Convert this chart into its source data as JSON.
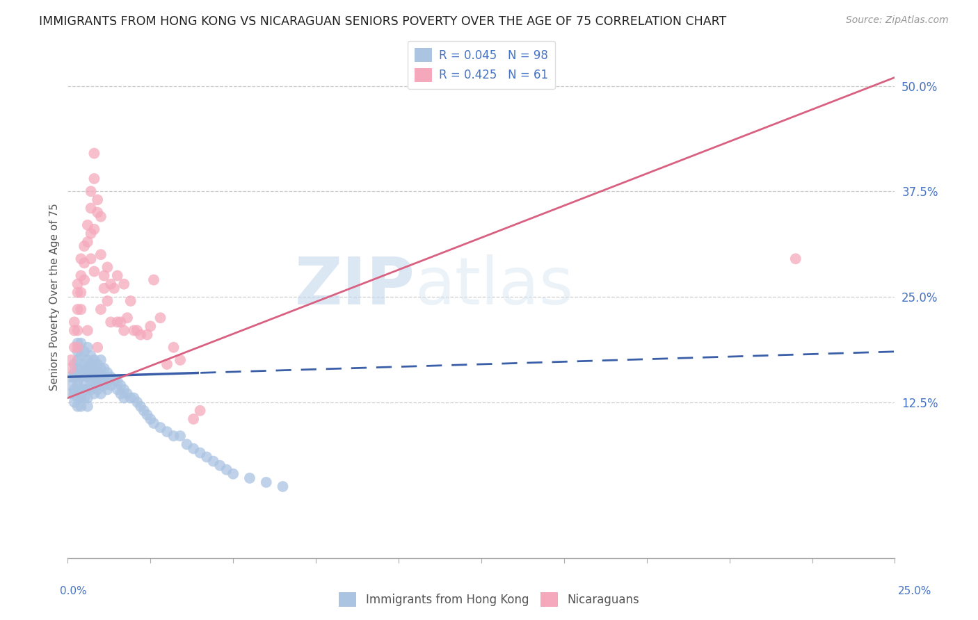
{
  "title": "IMMIGRANTS FROM HONG KONG VS NICARAGUAN SENIORS POVERTY OVER THE AGE OF 75 CORRELATION CHART",
  "source": "Source: ZipAtlas.com",
  "ylabel": "Seniors Poverty Over the Age of 75",
  "ytick_vals": [
    0.125,
    0.25,
    0.375,
    0.5
  ],
  "ytick_labels": [
    "12.5%",
    "25.0%",
    "37.5%",
    "50.0%"
  ],
  "xlim": [
    0.0,
    0.25
  ],
  "ylim": [
    -0.06,
    0.56
  ],
  "hk_R": 0.045,
  "hk_N": 98,
  "nic_R": 0.425,
  "nic_N": 61,
  "hk_color": "#aac4e2",
  "nic_color": "#f5a8bc",
  "hk_line_color": "#3a5fa8",
  "nic_line_color": "#d96080",
  "legend_label_hk": "Immigrants from Hong Kong",
  "legend_label_nic": "Nicaraguans",
  "watermark_zip": "ZIP",
  "watermark_atlas": "atlas",
  "background_color": "#ffffff",
  "hk_scatter_x": [
    0.001,
    0.001,
    0.001,
    0.002,
    0.002,
    0.002,
    0.002,
    0.002,
    0.002,
    0.003,
    0.003,
    0.003,
    0.003,
    0.003,
    0.003,
    0.003,
    0.003,
    0.003,
    0.003,
    0.003,
    0.004,
    0.004,
    0.004,
    0.004,
    0.004,
    0.004,
    0.004,
    0.005,
    0.005,
    0.005,
    0.005,
    0.005,
    0.005,
    0.006,
    0.006,
    0.006,
    0.006,
    0.006,
    0.006,
    0.006,
    0.007,
    0.007,
    0.007,
    0.007,
    0.007,
    0.008,
    0.008,
    0.008,
    0.008,
    0.008,
    0.009,
    0.009,
    0.009,
    0.009,
    0.01,
    0.01,
    0.01,
    0.01,
    0.01,
    0.011,
    0.011,
    0.011,
    0.012,
    0.012,
    0.012,
    0.013,
    0.013,
    0.014,
    0.015,
    0.015,
    0.016,
    0.016,
    0.017,
    0.017,
    0.018,
    0.019,
    0.02,
    0.021,
    0.022,
    0.023,
    0.024,
    0.025,
    0.026,
    0.028,
    0.03,
    0.032,
    0.034,
    0.036,
    0.038,
    0.04,
    0.042,
    0.044,
    0.046,
    0.048,
    0.05,
    0.055,
    0.06,
    0.065
  ],
  "hk_scatter_y": [
    0.155,
    0.145,
    0.135,
    0.17,
    0.16,
    0.155,
    0.14,
    0.135,
    0.125,
    0.195,
    0.185,
    0.175,
    0.165,
    0.155,
    0.15,
    0.145,
    0.14,
    0.135,
    0.13,
    0.12,
    0.195,
    0.18,
    0.165,
    0.155,
    0.14,
    0.13,
    0.12,
    0.185,
    0.17,
    0.16,
    0.15,
    0.14,
    0.13,
    0.19,
    0.175,
    0.165,
    0.155,
    0.14,
    0.13,
    0.12,
    0.18,
    0.17,
    0.16,
    0.15,
    0.14,
    0.175,
    0.165,
    0.155,
    0.145,
    0.135,
    0.17,
    0.16,
    0.15,
    0.14,
    0.175,
    0.165,
    0.155,
    0.145,
    0.135,
    0.165,
    0.155,
    0.145,
    0.16,
    0.15,
    0.14,
    0.155,
    0.145,
    0.15,
    0.15,
    0.14,
    0.145,
    0.135,
    0.14,
    0.13,
    0.135,
    0.13,
    0.13,
    0.125,
    0.12,
    0.115,
    0.11,
    0.105,
    0.1,
    0.095,
    0.09,
    0.085,
    0.085,
    0.075,
    0.07,
    0.065,
    0.06,
    0.055,
    0.05,
    0.045,
    0.04,
    0.035,
    0.03,
    0.025
  ],
  "nic_scatter_x": [
    0.001,
    0.001,
    0.002,
    0.002,
    0.002,
    0.003,
    0.003,
    0.003,
    0.003,
    0.003,
    0.004,
    0.004,
    0.004,
    0.004,
    0.005,
    0.005,
    0.005,
    0.006,
    0.006,
    0.006,
    0.007,
    0.007,
    0.007,
    0.007,
    0.008,
    0.008,
    0.008,
    0.008,
    0.009,
    0.009,
    0.009,
    0.01,
    0.01,
    0.01,
    0.011,
    0.011,
    0.012,
    0.012,
    0.013,
    0.013,
    0.014,
    0.015,
    0.015,
    0.016,
    0.017,
    0.017,
    0.018,
    0.019,
    0.02,
    0.021,
    0.022,
    0.024,
    0.025,
    0.026,
    0.028,
    0.03,
    0.032,
    0.034,
    0.038,
    0.04,
    0.22
  ],
  "nic_scatter_y": [
    0.175,
    0.165,
    0.22,
    0.21,
    0.19,
    0.265,
    0.255,
    0.235,
    0.21,
    0.19,
    0.295,
    0.275,
    0.255,
    0.235,
    0.31,
    0.29,
    0.27,
    0.335,
    0.315,
    0.21,
    0.375,
    0.355,
    0.325,
    0.295,
    0.42,
    0.39,
    0.33,
    0.28,
    0.365,
    0.35,
    0.19,
    0.345,
    0.3,
    0.235,
    0.275,
    0.26,
    0.285,
    0.245,
    0.265,
    0.22,
    0.26,
    0.275,
    0.22,
    0.22,
    0.265,
    0.21,
    0.225,
    0.245,
    0.21,
    0.21,
    0.205,
    0.205,
    0.215,
    0.27,
    0.225,
    0.17,
    0.19,
    0.175,
    0.105,
    0.115,
    0.295
  ],
  "hk_line_intercept": 0.155,
  "hk_line_slope": 0.12,
  "nic_line_intercept": 0.13,
  "nic_line_slope": 1.52
}
